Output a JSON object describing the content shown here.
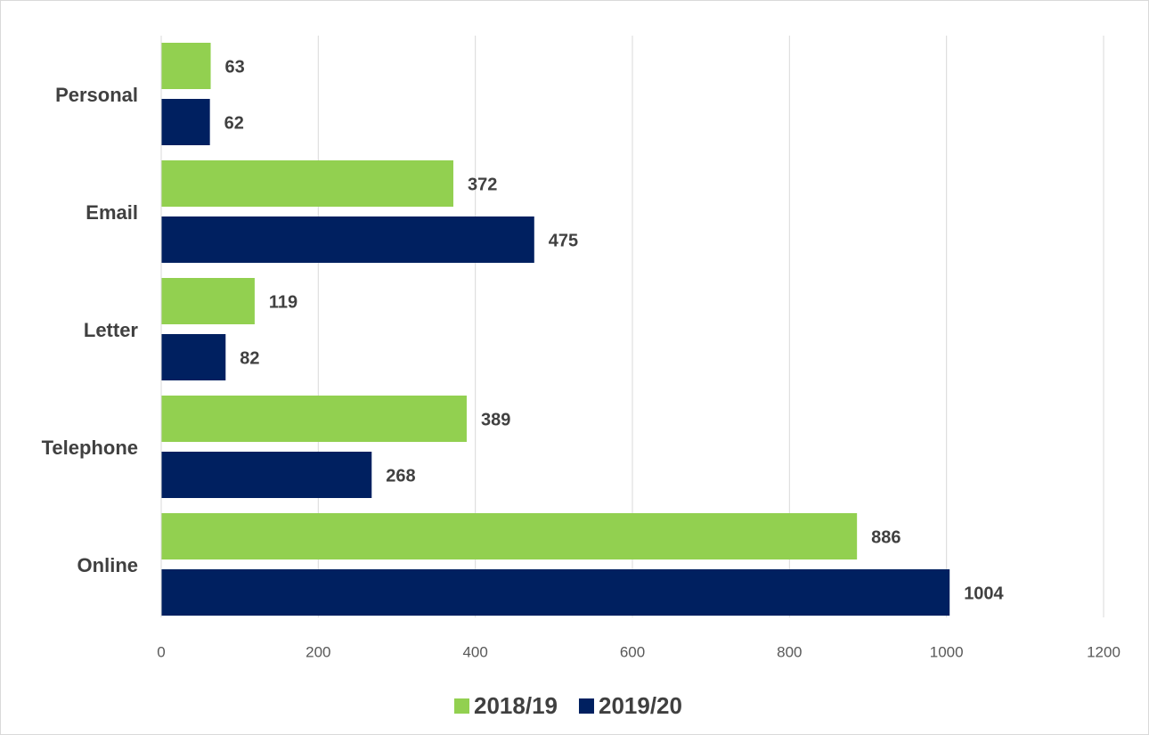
{
  "chart_data": {
    "type": "hbar",
    "categories": [
      "Personal",
      "Email",
      "Letter",
      "Telephone",
      "Online"
    ],
    "series": [
      {
        "name": "2018/19",
        "color": "#92d050",
        "values": [
          63,
          372,
          119,
          389,
          886
        ]
      },
      {
        "name": "2019/20",
        "color": "#002060",
        "values": [
          62,
          475,
          82,
          268,
          1004
        ]
      }
    ],
    "xlim": [
      0,
      1200
    ],
    "xticks": [
      0,
      200,
      400,
      600,
      800,
      1000,
      1200
    ],
    "grid": true,
    "legend": "bottom"
  }
}
